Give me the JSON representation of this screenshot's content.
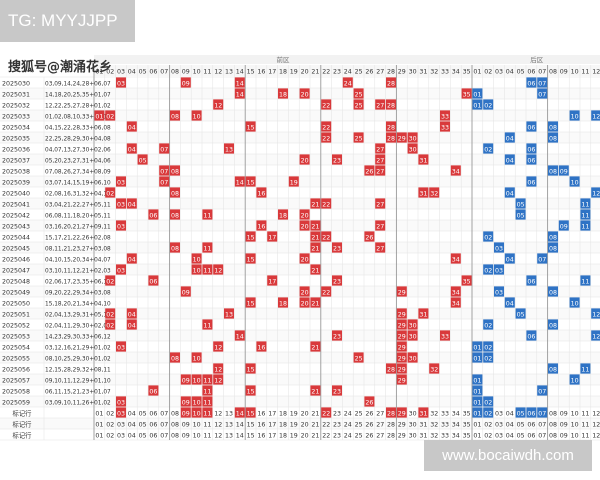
{
  "header": {
    "tag": "TG: MYYJJPP",
    "source": "搜狐号@潮涌花乡"
  },
  "footer": {
    "watermark": "www.bocaiwdh.com"
  },
  "chart_data": {
    "type": "table",
    "front_zone_label": "前区",
    "back_zone_label": "后区",
    "front_numbers": [
      "01",
      "02",
      "03",
      "04",
      "05",
      "06",
      "07",
      "08",
      "09",
      "10",
      "11",
      "12",
      "13",
      "14",
      "15",
      "16",
      "17",
      "18",
      "19",
      "20",
      "21",
      "22",
      "23",
      "24",
      "25",
      "26",
      "27",
      "28",
      "29",
      "30",
      "31",
      "32",
      "33",
      "34",
      "35"
    ],
    "back_numbers": [
      "01",
      "02",
      "03",
      "04",
      "05",
      "06",
      "07",
      "08",
      "09",
      "10",
      "11",
      "12"
    ],
    "draws": [
      {
        "issue": "2025030",
        "result": "03,09,14,24,28+06,07",
        "front": [
          3,
          9,
          14,
          24,
          28
        ],
        "back": [
          6,
          7
        ]
      },
      {
        "issue": "2025031",
        "result": "14,18,20,25,35+01,07",
        "front": [
          14,
          18,
          20,
          25,
          35
        ],
        "back": [
          1,
          7
        ]
      },
      {
        "issue": "2025032",
        "result": "12,22,25,27,28+01,02",
        "front": [
          12,
          22,
          25,
          27,
          28
        ],
        "back": [
          1,
          2
        ]
      },
      {
        "issue": "2025033",
        "result": "01,02,08,10,33+10,12",
        "front": [
          1,
          2,
          8,
          10,
          33
        ],
        "back": [
          10,
          12
        ]
      },
      {
        "issue": "2025034",
        "result": "04,15,22,28,33+06,08",
        "front": [
          4,
          15,
          22,
          28,
          33
        ],
        "back": [
          6,
          8
        ]
      },
      {
        "issue": "2025035",
        "result": "22,25,28,29,30+04,08",
        "front": [
          22,
          25,
          28,
          29,
          30
        ],
        "back": [
          4,
          8
        ]
      },
      {
        "issue": "2025036",
        "result": "04,07,13,27,30+02,06",
        "front": [
          4,
          7,
          13,
          27,
          30
        ],
        "back": [
          2,
          6
        ]
      },
      {
        "issue": "2025037",
        "result": "05,20,23,27,31+04,06",
        "front": [
          5,
          20,
          23,
          27,
          31
        ],
        "back": [
          4,
          6
        ]
      },
      {
        "issue": "2025038",
        "result": "07,08,26,27,34+08,09",
        "front": [
          7,
          8,
          26,
          27,
          34
        ],
        "back": [
          8,
          9
        ]
      },
      {
        "issue": "2025039",
        "result": "03,07,14,15,19+06,10",
        "front": [
          3,
          7,
          14,
          15,
          19
        ],
        "back": [
          6,
          10
        ]
      },
      {
        "issue": "2025040",
        "result": "02,08,16,31,32+04,12",
        "front": [
          2,
          8,
          16,
          31,
          32
        ],
        "back": [
          4,
          12
        ]
      },
      {
        "issue": "2025041",
        "result": "03,04,21,22,27+05,11",
        "front": [
          3,
          4,
          21,
          22,
          27
        ],
        "back": [
          5,
          11
        ]
      },
      {
        "issue": "2025042",
        "result": "06,08,11,18,20+05,11",
        "front": [
          6,
          8,
          11,
          18,
          20
        ],
        "back": [
          5,
          11
        ]
      },
      {
        "issue": "2025043",
        "result": "03,16,20,21,27+09,11",
        "front": [
          3,
          16,
          20,
          21,
          27
        ],
        "back": [
          9,
          11
        ]
      },
      {
        "issue": "2025044",
        "result": "15,17,21,22,26+02,08",
        "front": [
          15,
          17,
          21,
          22,
          26
        ],
        "back": [
          2,
          8
        ]
      },
      {
        "issue": "2025045",
        "result": "08,11,21,23,27+03,08",
        "front": [
          8,
          11,
          21,
          23,
          27
        ],
        "back": [
          3,
          8
        ]
      },
      {
        "issue": "2025046",
        "result": "04,10,15,20,34+04,07",
        "front": [
          4,
          10,
          15,
          20,
          34
        ],
        "back": [
          4,
          7
        ]
      },
      {
        "issue": "2025047",
        "result": "03,10,11,12,21+02,03",
        "front": [
          3,
          10,
          11,
          12,
          21
        ],
        "back": [
          2,
          3
        ]
      },
      {
        "issue": "2025048",
        "result": "02,06,17,23,35+06,11",
        "front": [
          2,
          6,
          17,
          23,
          35
        ],
        "back": [
          6,
          11
        ]
      },
      {
        "issue": "2025049",
        "result": "09,20,22,29,34+03,08",
        "front": [
          9,
          20,
          22,
          29,
          34
        ],
        "back": [
          3,
          8
        ]
      },
      {
        "issue": "2025050",
        "result": "15,18,20,21,34+04,10",
        "front": [
          15,
          18,
          20,
          21,
          34
        ],
        "back": [
          4,
          10
        ]
      },
      {
        "issue": "2025051",
        "result": "02,04,13,29,31+05,12",
        "front": [
          2,
          4,
          13,
          29,
          31
        ],
        "back": [
          5,
          12
        ]
      },
      {
        "issue": "2025052",
        "result": "02,04,11,29,30+02,08",
        "front": [
          2,
          4,
          11,
          29,
          30
        ],
        "back": [
          2,
          8
        ]
      },
      {
        "issue": "2025053",
        "result": "14,23,29,30,33+06,12",
        "front": [
          14,
          23,
          29,
          30,
          33
        ],
        "back": [
          6,
          12
        ]
      },
      {
        "issue": "2025054",
        "result": "03,12,16,21,29+01,02",
        "front": [
          3,
          12,
          16,
          21,
          29
        ],
        "back": [
          1,
          2
        ]
      },
      {
        "issue": "2025055",
        "result": "08,10,25,29,30+01,02",
        "front": [
          8,
          10,
          25,
          29,
          30
        ],
        "back": [
          1,
          2
        ]
      },
      {
        "issue": "2025056",
        "result": "12,15,28,29,32+08,11",
        "front": [
          12,
          15,
          28,
          29,
          32
        ],
        "back": [
          8,
          11
        ]
      },
      {
        "issue": "2025057",
        "result": "09,10,11,12,29+01,10",
        "front": [
          9,
          10,
          11,
          12,
          29
        ],
        "back": [
          1,
          10
        ]
      },
      {
        "issue": "2025058",
        "result": "06,11,15,21,23+01,07",
        "front": [
          6,
          11,
          15,
          21,
          23
        ],
        "back": [
          1,
          7
        ]
      },
      {
        "issue": "2025059",
        "result": "03,09,10,11,26+01,02",
        "front": [
          3,
          9,
          10,
          11,
          26
        ],
        "back": [
          1,
          2
        ]
      }
    ],
    "footer_rows": [
      {
        "label": "标记行",
        "front_marked": [
          3,
          9,
          10,
          11,
          14,
          15,
          22,
          28,
          29,
          31
        ],
        "back_marked": [
          1,
          2,
          5,
          6,
          7
        ]
      },
      {
        "label": "标记行",
        "front_marked": [],
        "back_marked": []
      },
      {
        "label": "标记行",
        "front_marked": [],
        "back_marked": []
      }
    ],
    "colors": {
      "front_ball": "#d9393b",
      "back_ball": "#2f73c5",
      "zone_bar": "#f2f2f2",
      "grid": "#e3e3e3",
      "text": "#333333"
    }
  }
}
